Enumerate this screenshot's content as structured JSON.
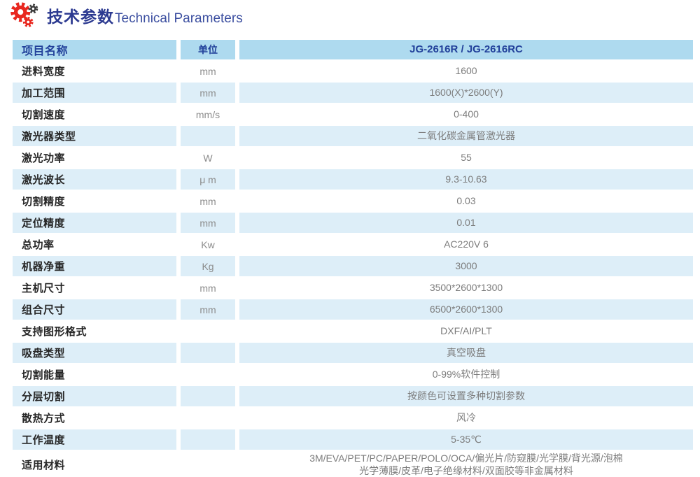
{
  "header": {
    "title_zh": "技术参数",
    "title_en": "Technical Parameters",
    "icon": "gears-icon"
  },
  "colors": {
    "title_blue": "#2b3990",
    "header_row_bg": "#aedaef",
    "header_row_text": "#21409a",
    "alt_row_bg": "#ddeef8",
    "label_text": "#262626",
    "value_text": "#7c7c7c",
    "gear_red": "#e8271f",
    "gear_dark": "#3a3a3a"
  },
  "table": {
    "headers": {
      "item": "项目名称",
      "unit": "单位",
      "model": "JG-2616R / JG-2616RC"
    },
    "rows": [
      {
        "item": "进料宽度",
        "unit": "mm",
        "value": "1600"
      },
      {
        "item": "加工范围",
        "unit": "mm",
        "value": "1600(X)*2600(Y)"
      },
      {
        "item": "切割速度",
        "unit": "mm/s",
        "value": "0-400"
      },
      {
        "item": "激光器类型",
        "unit": "",
        "value": "二氧化碳金属管激光器"
      },
      {
        "item": "激光功率",
        "unit": "W",
        "value": "55"
      },
      {
        "item": "激光波长",
        "unit": "μ m",
        "value": "9.3-10.63"
      },
      {
        "item": "切割精度",
        "unit": "mm",
        "value": "0.03"
      },
      {
        "item": "定位精度",
        "unit": "mm",
        "value": "0.01"
      },
      {
        "item": "总功率",
        "unit": "Kw",
        "value": "AC220V 6"
      },
      {
        "item": "机器净重",
        "unit": "Kg",
        "value": "3000"
      },
      {
        "item": "主机尺寸",
        "unit": "mm",
        "value": "3500*2600*1300"
      },
      {
        "item": "组合尺寸",
        "unit": "mm",
        "value": "6500*2600*1300"
      },
      {
        "item": "支持图形格式",
        "unit": "",
        "value": "DXF/AI/PLT"
      },
      {
        "item": "吸盘类型",
        "unit": "",
        "value": "真空吸盘"
      },
      {
        "item": "切割能量",
        "unit": "",
        "value": "0-99%软件控制"
      },
      {
        "item": "分层切割",
        "unit": "",
        "value": "按颜色可设置多种切割参数"
      },
      {
        "item": "散热方式",
        "unit": "",
        "value": "风冷"
      },
      {
        "item": "工作温度",
        "unit": "",
        "value": "5-35℃"
      },
      {
        "item": "适用材料",
        "unit": "",
        "value": "3M/EVA/PET/PC/PAPER/POLO/OCA/偏光片/防窥膜/光学膜/背光源/泡棉\n光学薄膜/皮革/电子绝缘材料/双面胶等非金属材料"
      }
    ]
  }
}
